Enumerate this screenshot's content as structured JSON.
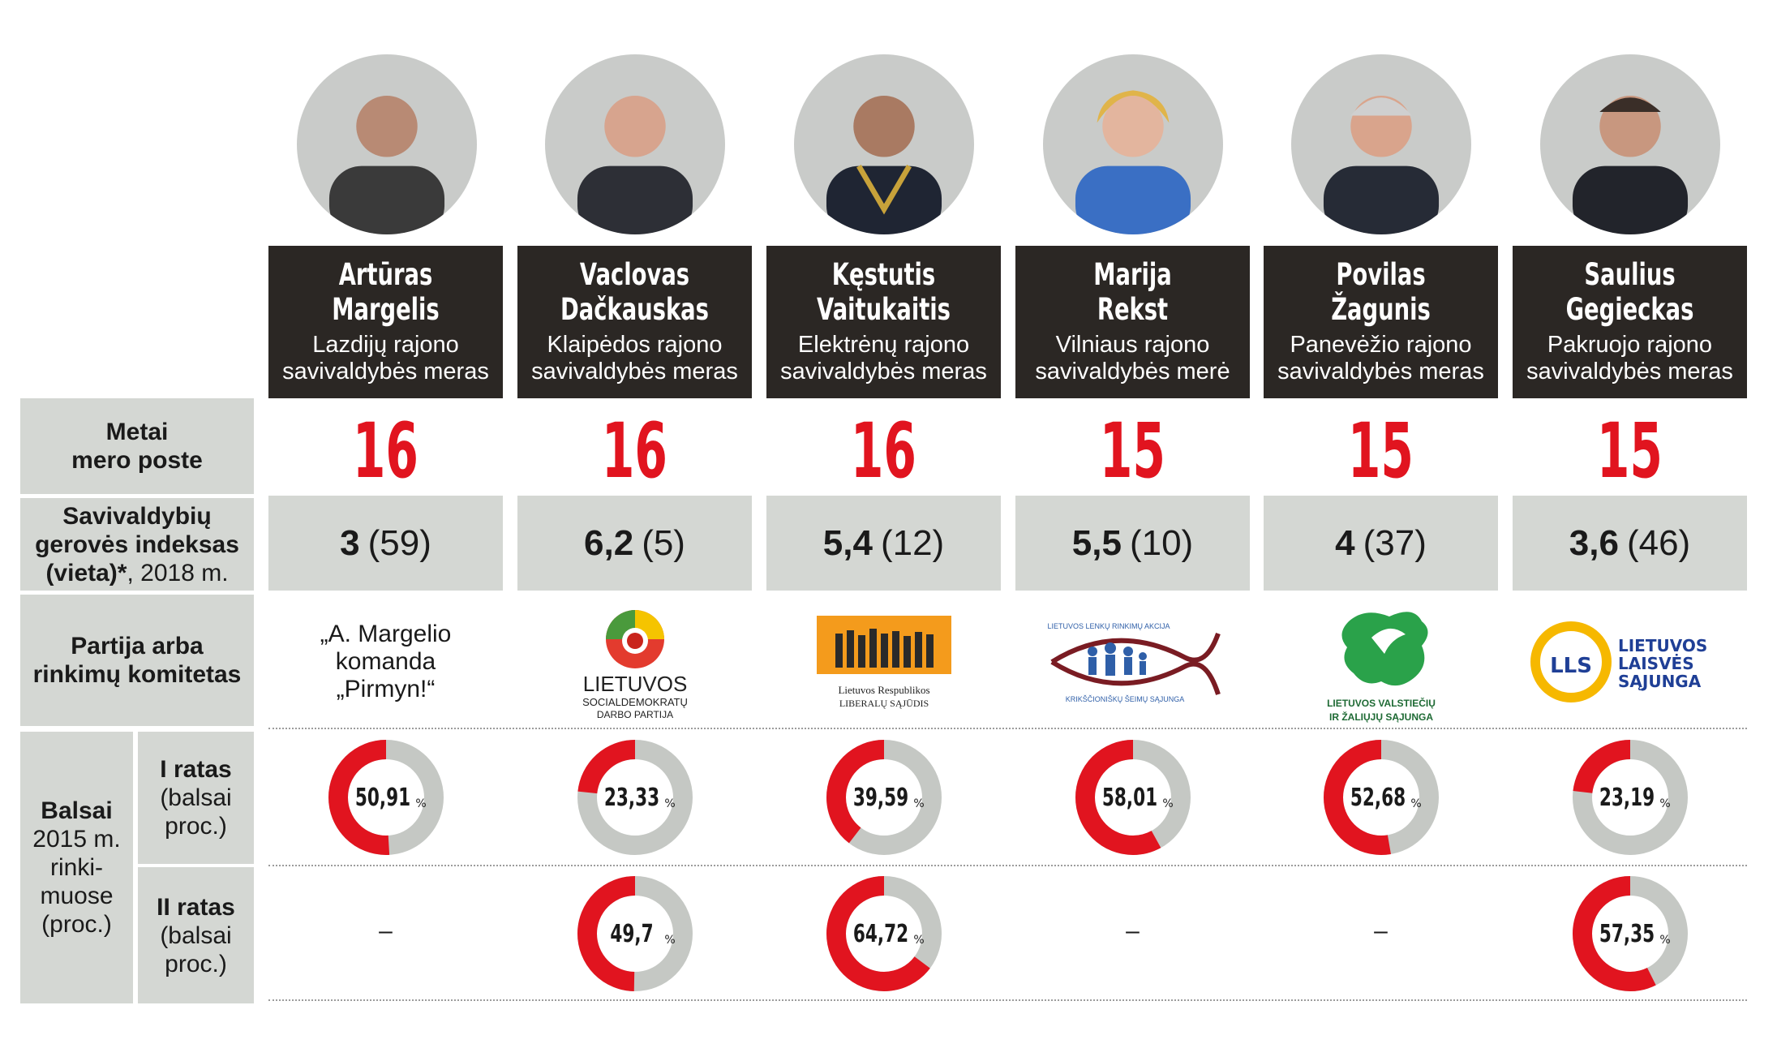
{
  "labels": {
    "tenure": [
      "Metai",
      "mero poste"
    ],
    "welfare": [
      "Savivaldybių",
      "gerovės indeksas",
      "(vieta)*",
      ", 2018 m."
    ],
    "party": [
      "Partija arba",
      "rinkimų komitetas"
    ],
    "votes": [
      "Balsai",
      "2015 m.",
      "rinki-",
      "muose",
      "(proc.)"
    ],
    "round1": [
      "I ratas",
      "(balsai",
      "proc.)"
    ],
    "round2": [
      "II ratas",
      "(balsai",
      "proc.)"
    ]
  },
  "candidates": [
    {
      "first": "Artūras",
      "last": "Margelis",
      "role1": "Lazdijų rajono",
      "role2": "savivaldybės meras",
      "tenure": "16",
      "welfare_index": "3",
      "welfare_rank": "(59)",
      "party_text": [
        "„A. Margelio",
        "komanda",
        "„Pirmyn!“"
      ],
      "round1_label": "50,91",
      "round2_label": "–"
    },
    {
      "first": "Vaclovas",
      "last": "Dačkauskas",
      "role1": "Klaipėdos rajono",
      "role2": "savivaldybės meras",
      "tenure": "16",
      "welfare_index": "6,2",
      "welfare_rank": "(5)",
      "party_logo": [
        "LIETUVOS",
        "SOCIALDEMOKRATŲ",
        "DARBO PARTIJA"
      ],
      "round1_label": "23,33",
      "round2_label": "49,7"
    },
    {
      "first": "Kęstutis",
      "last": "Vaitukaitis",
      "role1": "Elektrėnų rajono",
      "role2": "savivaldybės meras",
      "tenure": "16",
      "welfare_index": "5,4",
      "welfare_rank": "(12)",
      "party_logo": [
        "Lietuvos Respublikos",
        "LIBERALŲ SĄJŪDIS"
      ],
      "round1_label": "39,59",
      "round2_label": "64,72"
    },
    {
      "first": "Marija",
      "last": "Rekst",
      "role1": "Vilniaus rajono",
      "role2": "savivaldybės merė",
      "tenure": "15",
      "welfare_index": "5,5",
      "welfare_rank": "(10)",
      "party_logo": [
        "LIETUVOS LENKŲ RINKIMŲ AKCIJA",
        "KRIKŠČIONIŠKŲ ŠEIMŲ SĄJUNGA"
      ],
      "round1_label": "58,01",
      "round2_label": "–"
    },
    {
      "first": "Povilas",
      "last": "Žagunis",
      "role1": "Panevėžio rajono",
      "role2": "savivaldybės meras",
      "tenure": "15",
      "welfare_index": "4",
      "welfare_rank": "(37)",
      "party_logo": [
        "LIETUVOS VALSTIEČIŲ",
        "IR ŽALIŲJŲ SĄJUNGA"
      ],
      "round1_label": "52,68",
      "round2_label": "–"
    },
    {
      "first": "Saulius",
      "last": "Gegieckas",
      "role1": "Pakruojo rajono",
      "role2": "savivaldybės meras",
      "tenure": "15",
      "welfare_index": "3,6",
      "welfare_rank": "(46)",
      "party_logo": [
        "LIETUVOS",
        "LAISVĖS",
        "SĄJUNGA",
        "LLS"
      ],
      "round1_label": "23,19",
      "round2_label": "57,35"
    }
  ],
  "chart_data": {
    "type": "table",
    "columns": [
      "Artūras Margelis",
      "Vaclovas Dačkauskas",
      "Kęstutis Vaitukaitis",
      "Marija Rekst",
      "Povilas Žagunis",
      "Saulius Gegieckas"
    ],
    "tenure_years": [
      16,
      16,
      16,
      15,
      15,
      15
    ],
    "welfare_index_2018": [
      3,
      6.2,
      5.4,
      5.5,
      4,
      3.6
    ],
    "welfare_rank_2018": [
      59,
      5,
      12,
      10,
      37,
      46
    ],
    "votes_2015_round1_pct": [
      50.91,
      23.33,
      39.59,
      58.01,
      52.68,
      23.19
    ],
    "votes_2015_round2_pct": [
      null,
      49.7,
      64.72,
      null,
      null,
      57.35
    ],
    "donut_colors": {
      "share": "#e1141f",
      "remainder": "#c5c8c4"
    },
    "unit": "%"
  },
  "colors": {
    "accent": "#e1141f",
    "namebox": "#2b2724",
    "label_bg": "#d4d7d3"
  }
}
